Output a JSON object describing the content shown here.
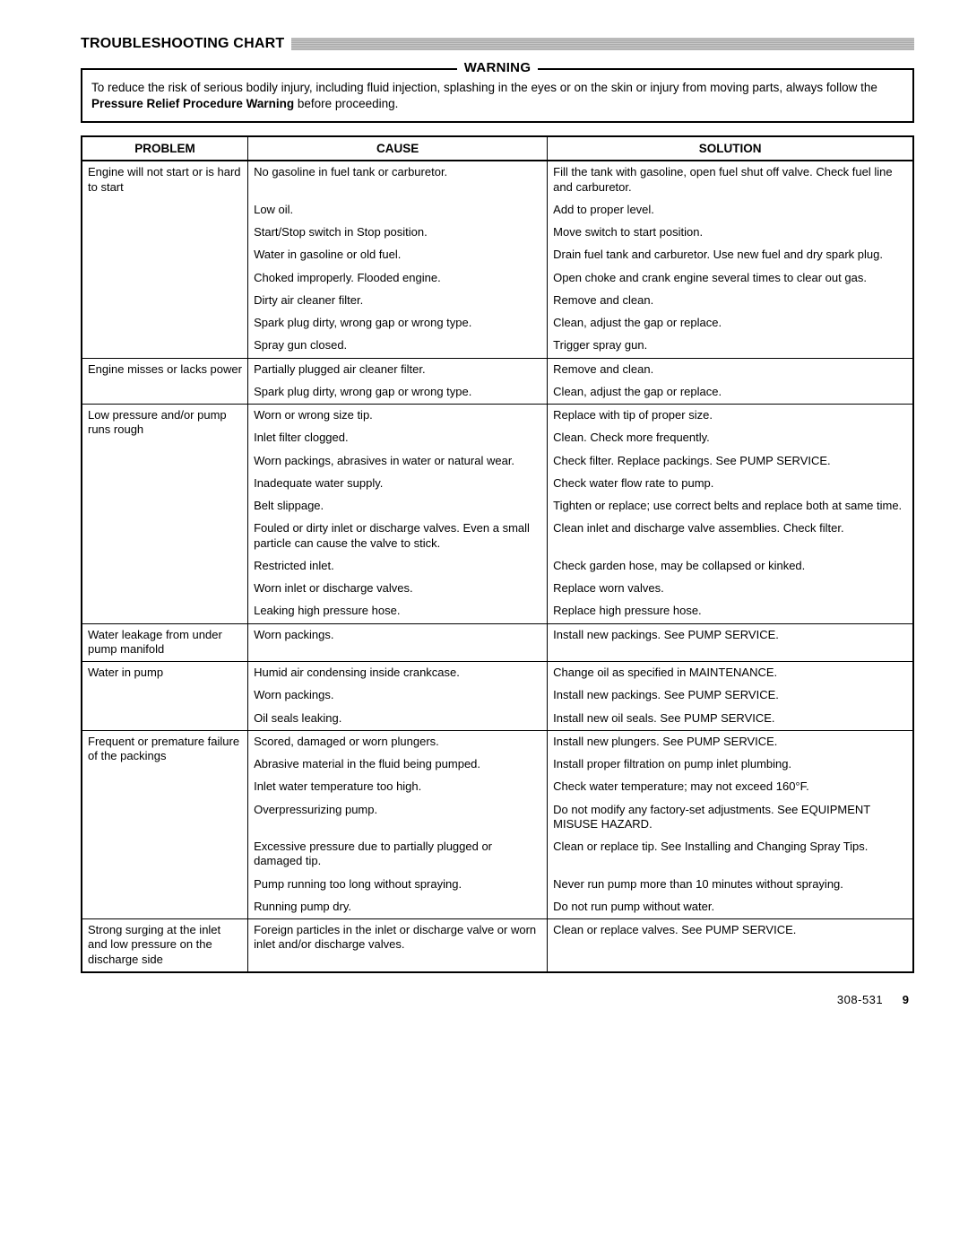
{
  "heading": "TROUBLESHOOTING CHART",
  "warning": {
    "label": "WARNING",
    "body_pre": "To reduce the risk of serious bodily injury, including fluid injection, splashing in the eyes or on the skin or injury from moving parts, always follow the ",
    "body_bold": "Pressure Relief Procedure Warning",
    "body_post": " before proceeding."
  },
  "columns": {
    "problem": "PROBLEM",
    "cause": "CAUSE",
    "solution": "SOLUTION"
  },
  "sections": [
    {
      "problem": "Engine will not start or is hard to start",
      "rows": [
        {
          "cause": "No gasoline in fuel tank or carburetor.",
          "solution": "Fill the tank with gasoline, open fuel shut off valve. Check fuel line and carburetor."
        },
        {
          "cause": "Low oil.",
          "solution": "Add to proper level."
        },
        {
          "cause": "Start/Stop switch in Stop position.",
          "solution": "Move switch to start position."
        },
        {
          "cause": "Water in gasoline or old fuel.",
          "solution": "Drain fuel tank and carburetor. Use new fuel and dry spark plug."
        },
        {
          "cause": "Choked improperly. Flooded engine.",
          "solution": "Open choke and crank engine several times to clear out gas."
        },
        {
          "cause": "Dirty air cleaner filter.",
          "solution": "Remove and clean."
        },
        {
          "cause": "Spark plug dirty, wrong gap or wrong type.",
          "solution": "Clean, adjust the gap or replace."
        },
        {
          "cause": "Spray gun closed.",
          "solution": "Trigger spray gun."
        }
      ]
    },
    {
      "problem": "Engine misses or lacks power",
      "rows": [
        {
          "cause": "Partially plugged air cleaner filter.",
          "solution": "Remove and clean."
        },
        {
          "cause": "Spark plug dirty, wrong gap or wrong type.",
          "solution": "Clean, adjust the gap or replace."
        }
      ]
    },
    {
      "problem": "Low pressure and/or pump runs rough",
      "rows": [
        {
          "cause": "Worn or wrong size tip.",
          "solution": "Replace with tip of proper size."
        },
        {
          "cause": "Inlet filter clogged.",
          "solution": "Clean. Check more frequently."
        },
        {
          "cause": "Worn packings, abrasives in water or natural wear.",
          "solution": "Check filter. Replace packings. See PUMP SERVICE."
        },
        {
          "cause": "Inadequate water supply.",
          "solution": "Check water flow rate to pump."
        },
        {
          "cause": "Belt slippage.",
          "solution": "Tighten or replace; use correct belts and replace both at same time."
        },
        {
          "cause": "Fouled or dirty inlet or discharge valves. Even a small particle can cause the valve to stick.",
          "solution": "Clean inlet and discharge valve assemblies. Check filter."
        },
        {
          "cause": "Restricted inlet.",
          "solution": "Check garden hose, may be collapsed or kinked."
        },
        {
          "cause": "Worn inlet or discharge valves.",
          "solution": "Replace worn valves."
        },
        {
          "cause": "Leaking high pressure hose.",
          "solution": "Replace high pressure hose."
        }
      ]
    },
    {
      "problem": "Water leakage from under pump manifold",
      "rows": [
        {
          "cause": "Worn packings.",
          "solution": "Install new packings. See PUMP SERVICE."
        }
      ]
    },
    {
      "problem": "Water in pump",
      "rows": [
        {
          "cause": "Humid air condensing inside crankcase.",
          "solution": "Change oil as specified in MAINTENANCE."
        },
        {
          "cause": "Worn packings.",
          "solution": "Install new packings. See PUMP SERVICE."
        },
        {
          "cause": "Oil seals leaking.",
          "solution": "Install new oil seals. See PUMP SERVICE."
        }
      ]
    },
    {
      "problem": "Frequent or premature failure of the packings",
      "rows": [
        {
          "cause": "Scored, damaged or worn plungers.",
          "solution": "Install new plungers. See PUMP SERVICE."
        },
        {
          "cause": "Abrasive material in the fluid being pumped.",
          "solution": "Install proper filtration on pump inlet plumbing."
        },
        {
          "cause": "Inlet water temperature too high.",
          "solution": "Check water temperature; may not exceed 160°F."
        },
        {
          "cause": "Overpressurizing pump.",
          "solution": "Do not modify any factory-set adjustments. See EQUIPMENT MISUSE HAZARD."
        },
        {
          "cause": "Excessive pressure due to partially plugged or damaged tip.",
          "solution": "Clean or replace tip. See Installing and Changing Spray Tips."
        },
        {
          "cause": "Pump running too long without spraying.",
          "solution": "Never run pump more than 10 minutes without spraying."
        },
        {
          "cause": "Running pump dry.",
          "solution": "Do not run pump without water."
        }
      ]
    },
    {
      "problem": "Strong surging at the inlet and low pressure on the discharge side",
      "rows": [
        {
          "cause": "Foreign particles in the inlet or discharge valve or worn inlet and/or discharge valves.",
          "solution": "Clean or replace valves. See PUMP SERVICE."
        }
      ]
    }
  ],
  "footer": {
    "docnum": "308-531",
    "pagenum": "9"
  }
}
